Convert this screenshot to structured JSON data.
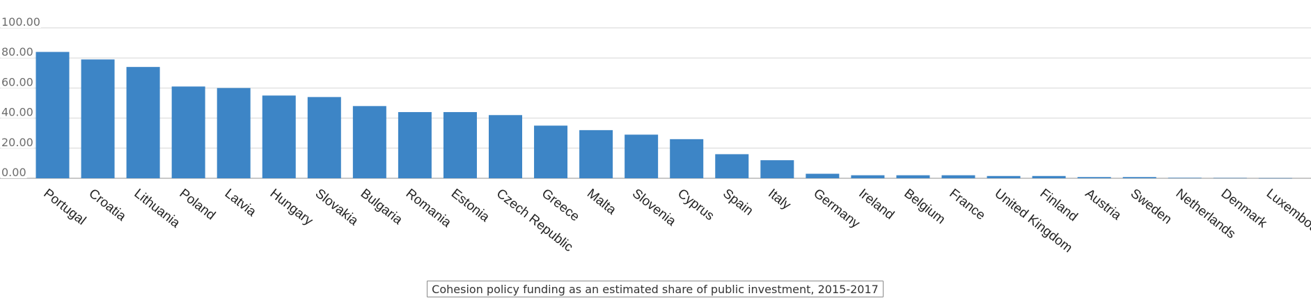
{
  "chart_data": {
    "type": "bar",
    "title": "Cohesion policy funding as an estimated share of public investment, 2015-2017",
    "xlabel": "",
    "ylabel": "",
    "ylim": [
      0,
      100
    ],
    "yticks": [
      "0.00",
      "20.00",
      "40.00",
      "60.00",
      "80.00",
      "100.00"
    ],
    "grid": true,
    "color": "#3d85c6",
    "categories": [
      "Portugal",
      "Croatia",
      "Lithuania",
      "Poland",
      "Latvia",
      "Hungary",
      "Slovakia",
      "Bulgaria",
      "Romania",
      "Estonia",
      "Czech Republic",
      "Greece",
      "Malta",
      "Slovenia",
      "Cyprus",
      "Spain",
      "Italy",
      "Germany",
      "Ireland",
      "Belgium",
      "France",
      "United Kingdom",
      "Finland",
      "Austria",
      "Sweden",
      "Netherlands",
      "Denmark",
      "Luxembourg"
    ],
    "values": [
      84,
      79,
      74,
      61,
      60,
      55,
      54,
      48,
      44,
      44,
      42,
      35,
      32,
      29,
      26,
      16,
      12,
      3,
      2,
      2,
      2,
      1.5,
      1.5,
      0.8,
      0.8,
      0.3,
      0.2,
      0.1
    ]
  }
}
